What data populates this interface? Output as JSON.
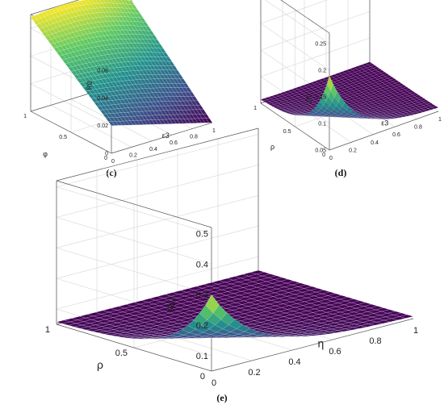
{
  "chart_data": [
    {
      "type": "surface",
      "panel_caption": "(c)",
      "zlabel": "R0",
      "xlabel": "ε3",
      "ylabel": "φ",
      "x_ticks": [
        "0",
        "0.2",
        "0.4",
        "0.6",
        "0.8",
        "1"
      ],
      "y_ticks": [
        "0",
        "0.5",
        "1"
      ],
      "z_ticks": [
        "0",
        "0.02",
        "0.04",
        "0.06"
      ],
      "xlim": [
        0,
        1
      ],
      "ylim": [
        0,
        1
      ],
      "zlim": [
        0,
        0.07
      ],
      "grid": true,
      "corner_values": {
        "x0_y0": 0.02,
        "x1_y0": 0.0,
        "x0_y1": 0.068,
        "x1_y1": 0.058
      },
      "colormap": [
        "#440154",
        "#3b528b",
        "#21918c",
        "#5ec962",
        "#fde725"
      ]
    },
    {
      "type": "surface",
      "panel_caption": "(d)",
      "zlabel": "R0",
      "xlabel": "ε3",
      "ylabel": "ρ",
      "x_ticks": [
        "0",
        "0.2",
        "0.4",
        "0.6",
        "0.8",
        "1"
      ],
      "y_ticks": [
        "0",
        "0.5",
        "1"
      ],
      "z_ticks": [
        "0.05",
        "0.1",
        "0.15",
        "0.2",
        "0.25"
      ],
      "xlim": [
        0,
        1
      ],
      "ylim": [
        0,
        1
      ],
      "zlim": [
        0.05,
        0.27
      ],
      "grid": true,
      "baseline": 0.055,
      "peak": {
        "x": 0,
        "y": 0,
        "z": 0.19
      },
      "colormap": [
        "#440154",
        "#3b528b",
        "#21918c",
        "#5ec962",
        "#fde725"
      ]
    },
    {
      "type": "surface",
      "panel_caption": "(e)",
      "zlabel": "R0",
      "xlabel": "η",
      "ylabel": "ρ",
      "x_ticks": [
        "0",
        "0.2",
        "0.4",
        "0.6",
        "0.8",
        "1"
      ],
      "y_ticks": [
        "0",
        "0.5",
        "1"
      ],
      "z_ticks": [
        "0.1",
        "0.2",
        "0.3",
        "0.4",
        "0.5"
      ],
      "xlim": [
        0,
        1
      ],
      "ylim": [
        0,
        1
      ],
      "zlim": [
        0.05,
        0.52
      ],
      "grid": true,
      "baseline": 0.055,
      "peak": {
        "x": 0,
        "y": 0,
        "z": 0.3
      },
      "colormap": [
        "#440154",
        "#3b528b",
        "#21918c",
        "#5ec962",
        "#fde725"
      ]
    }
  ]
}
